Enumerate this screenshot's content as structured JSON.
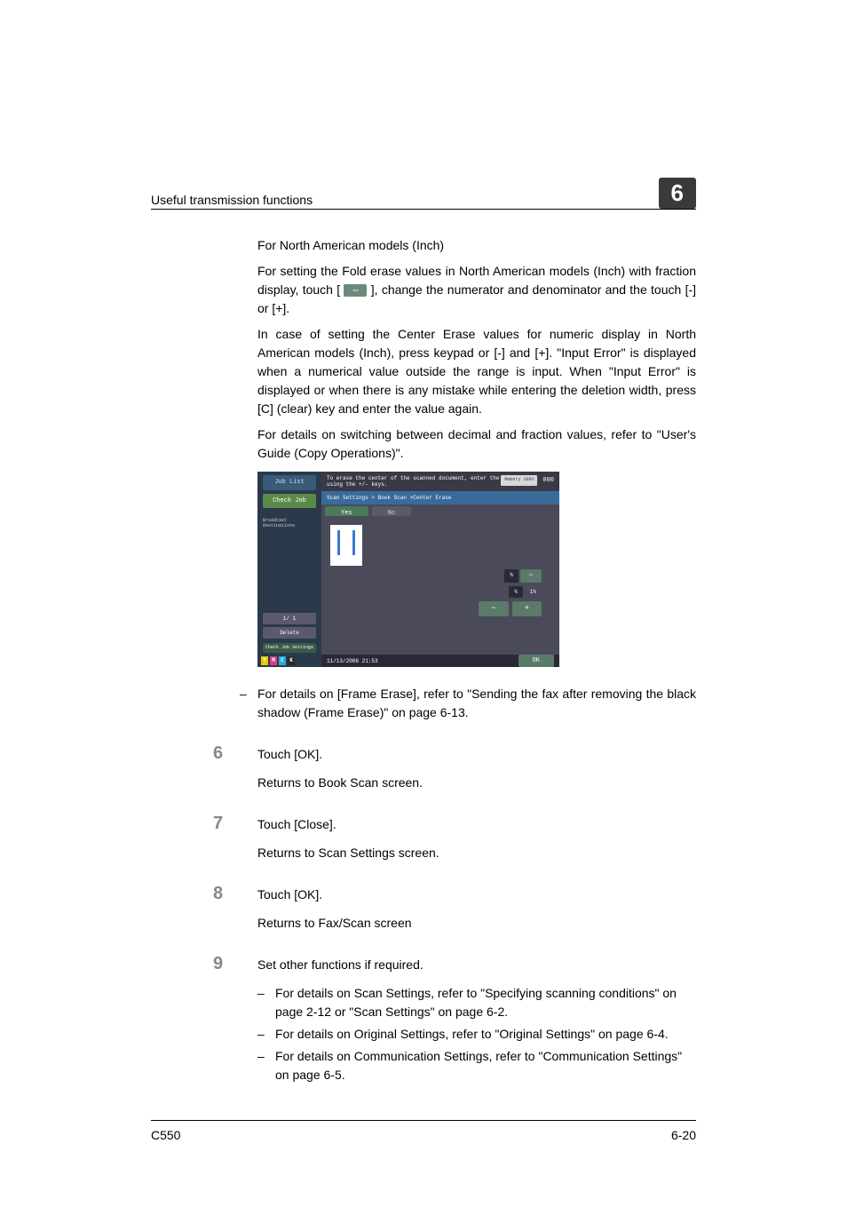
{
  "header": {
    "section_title": "Useful transmission functions",
    "chapter_number": "6"
  },
  "paragraphs": {
    "p1": "For North American models (Inch)",
    "p2_a": "For setting the Fold erase values in North American models (Inch) with fraction display, touch [",
    "p2_b": "], change the numerator and denominator and the touch [-] or [+].",
    "p3": "In case of setting the Center Erase values for numeric display in North American models (Inch), press keypad or [-] and [+]. \"Input Error\" is displayed when a numerical value outside the range is input. When \"Input Error\" is displayed or when there is any mistake while entering the deletion width, press [C] (clear) key and enter the value again.",
    "p4": "For details on switching between decimal and fraction values, refer to \"User's Guide (Copy Operations)\"."
  },
  "screenshot": {
    "joblist": "Job List",
    "checkjob": "Check Job",
    "left_label": "Broadcast\nDestinations",
    "pager": "1/   1",
    "delete": "Delete",
    "checkset": "Check Job\nSettings",
    "toner": [
      "Y",
      "M",
      "C",
      "K"
    ],
    "toner_colors": [
      "#e8c800",
      "#d83a8a",
      "#2aa8d8",
      "#2a2a2a"
    ],
    "instruction": "To erase the center of the scanned document,\nenter the erase width using the +/- keys.",
    "mem": "Memory\n100%",
    "count": "000",
    "breadcrumb": "Scan Settings > Book Scan >Center Erase",
    "tab_yes": "Yes",
    "tab_no": "No",
    "frac_num": "¾",
    "frac_den": "1¾",
    "swap_icon": "⇔",
    "minus": "−",
    "plus": "+",
    "datetime": "11/13/2006   21:53",
    "mempct": "Memory      100%",
    "ok": "OK"
  },
  "bullet1": "For details on [Frame Erase], refer to \"Sending the fax after removing the black shadow (Frame Erase)\" on page 6-13.",
  "steps": {
    "s6": {
      "num": "6",
      "text": "Touch [OK].",
      "sub": "Returns to Book Scan screen."
    },
    "s7": {
      "num": "7",
      "text": "Touch [Close].",
      "sub": "Returns to Scan Settings screen."
    },
    "s8": {
      "num": "8",
      "text": "Touch [OK].",
      "sub": "Returns to Fax/Scan screen"
    },
    "s9": {
      "num": "9",
      "text": "Set other functions if required."
    }
  },
  "sub_bullets": {
    "b1": "For details on Scan Settings, refer to \"Specifying scanning conditions\" on page 2-12 or \"Scan Settings\" on page 6-2.",
    "b2": "For details on Original Settings, refer to \"Original Settings\" on page 6-4.",
    "b3": "For details on Communication Settings, refer to \"Communication Settings\" on page 6-5."
  },
  "footer": {
    "model": "C550",
    "page": "6-20"
  },
  "dash": "–",
  "swap_inline": "⇔"
}
